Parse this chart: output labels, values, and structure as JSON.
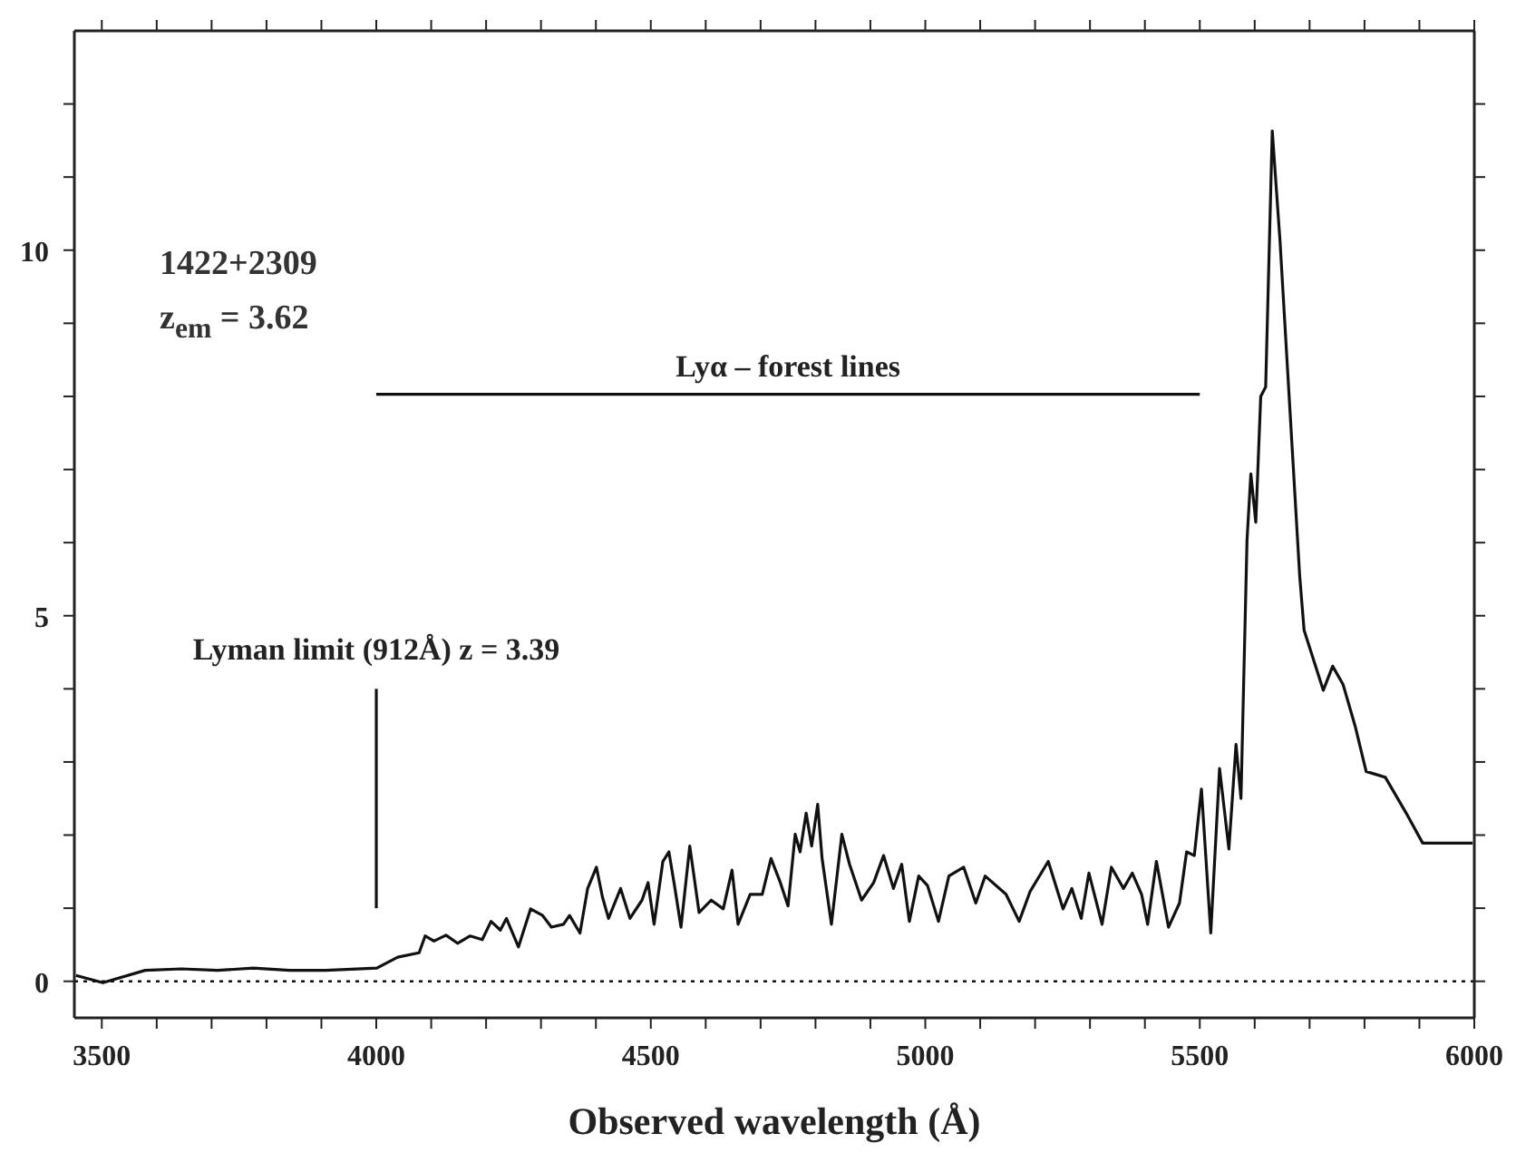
{
  "chart_data": {
    "type": "line",
    "xlabel": "Observed wavelength (Å)",
    "xlim": [
      3450,
      6000
    ],
    "ylim": [
      -0.5,
      13
    ],
    "xticks": [
      3500,
      {
        "value": 3600,
        "label": null
      },
      {
        "value": 3700,
        "label": null
      },
      {
        "value": 3800,
        "label": null
      },
      {
        "value": 3900,
        "label": null
      },
      4000,
      {
        "value": 4100,
        "label": null
      },
      {
        "value": 4200,
        "label": null
      },
      {
        "value": 4300,
        "label": null
      },
      {
        "value": 4400,
        "label": null
      },
      4500,
      {
        "value": 4600,
        "label": null
      },
      {
        "value": 4700,
        "label": null
      },
      {
        "value": 4800,
        "label": null
      },
      {
        "value": 4900,
        "label": null
      },
      5000,
      {
        "value": 5100,
        "label": null
      },
      {
        "value": 5200,
        "label": null
      },
      {
        "value": 5300,
        "label": null
      },
      {
        "value": 5400,
        "label": null
      },
      5500,
      {
        "value": 5600,
        "label": null
      },
      {
        "value": 5700,
        "label": null
      },
      {
        "value": 5800,
        "label": null
      },
      {
        "value": 5900,
        "label": null
      },
      6000
    ],
    "yticks": [
      0,
      {
        "value": 1,
        "label": null
      },
      {
        "value": 2,
        "label": null
      },
      {
        "value": 3,
        "label": null
      },
      {
        "value": 4,
        "label": null
      },
      5,
      {
        "value": 6,
        "label": null
      },
      {
        "value": 7,
        "label": null
      },
      {
        "value": 8,
        "label": null
      },
      {
        "value": 9,
        "label": null
      },
      10,
      {
        "value": 11,
        "label": null
      },
      {
        "value": 12,
        "label": null
      }
    ],
    "annotations": [
      "1422+2309",
      "z$_{em}$ = 3.62",
      {
        "text": "Lyα – forest lines",
        "x": 4750,
        "y": 8.03
      },
      {
        "text": "Lyman limit (912Å) z = 3.39",
        "x": 4000,
        "y": 4.0
      }
    ],
    "ref_lines": [
      {
        "axis": "y",
        "value": 0,
        "line_style": "dotted",
        "color": "#111111"
      }
    ],
    "series": [
      {
        "color": "#111111",
        "x": [
          3453,
          3502,
          3579,
          3645,
          3711,
          3776,
          3842,
          3908,
          4001,
          4039,
          4078,
          4089,
          4105,
          4127,
          4148,
          4171,
          4193,
          4209,
          4226,
          4237,
          4259,
          4281,
          4303,
          4319,
          4341,
          4352,
          4371,
          4385,
          4401,
          4412,
          4423,
          4445,
          4462,
          4484,
          4495,
          4506,
          4522,
          4533,
          4544,
          4555,
          4571,
          4588,
          4610,
          4632,
          4648,
          4659,
          4681,
          4703,
          4719,
          4736,
          4750,
          4763,
          4772,
          4783,
          4793,
          4804,
          4812,
          4829,
          4848,
          4862,
          4884,
          4906,
          4924,
          4942,
          4957,
          4971,
          4988,
          5004,
          5024,
          5043,
          5070,
          5092,
          5109,
          5147,
          5171,
          5191,
          5224,
          5251,
          5267,
          5284,
          5298,
          5322,
          5339,
          5361,
          5377,
          5394,
          5405,
          5421,
          5443,
          5463,
          5476,
          5490,
          5503,
          5520,
          5536,
          5553,
          5566,
          5575,
          5586,
          5593,
          5602,
          5611,
          5620,
          5632,
          5646,
          5682,
          5690,
          5725,
          5742,
          5761,
          5783,
          5803,
          5838,
          5876,
          5906,
          5997
        ],
        "values": [
          0.08,
          -0.02,
          0.15,
          0.17,
          0.15,
          0.18,
          0.15,
          0.15,
          0.18,
          0.33,
          0.39,
          0.62,
          0.55,
          0.63,
          0.52,
          0.62,
          0.57,
          0.82,
          0.7,
          0.86,
          0.47,
          0.99,
          0.9,
          0.74,
          0.78,
          0.9,
          0.66,
          1.27,
          1.56,
          1.15,
          0.86,
          1.27,
          0.86,
          1.11,
          1.35,
          0.78,
          1.64,
          1.77,
          1.27,
          0.74,
          1.85,
          0.94,
          1.11,
          0.99,
          1.52,
          0.78,
          1.19,
          1.19,
          1.68,
          1.35,
          1.03,
          2.01,
          1.77,
          2.3,
          1.85,
          2.42,
          1.68,
          0.78,
          2.01,
          1.6,
          1.11,
          1.35,
          1.72,
          1.27,
          1.6,
          0.82,
          1.44,
          1.31,
          0.82,
          1.44,
          1.56,
          1.07,
          1.44,
          1.19,
          0.82,
          1.23,
          1.64,
          0.99,
          1.27,
          0.86,
          1.48,
          0.78,
          1.56,
          1.27,
          1.48,
          1.19,
          0.78,
          1.64,
          0.74,
          1.07,
          1.77,
          1.72,
          2.63,
          0.66,
          2.91,
          1.81,
          3.24,
          2.5,
          6.03,
          6.94,
          6.28,
          8.0,
          8.13,
          11.63,
          10.14,
          5.54,
          4.8,
          3.98,
          4.31,
          4.06,
          3.49,
          2.87,
          2.79,
          2.3,
          1.89,
          1.89
        ]
      },
      {
        "color": "#111111",
        "x": [
          4000,
          5500
        ],
        "values": [
          8.03,
          8.03
        ]
      },
      {
        "color": "#111111",
        "x": [
          4000,
          4000
        ],
        "values": [
          1.0,
          4.0
        ]
      }
    ]
  }
}
